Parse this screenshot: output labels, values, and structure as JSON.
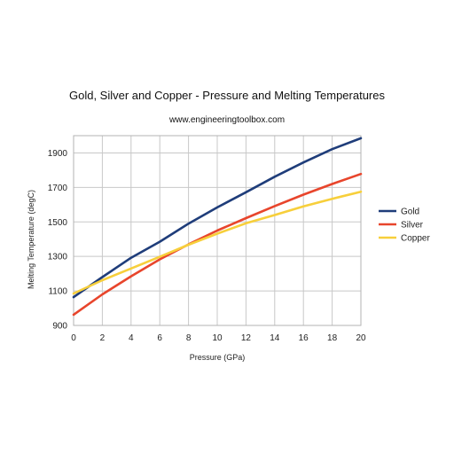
{
  "chart_data": {
    "type": "line",
    "title": "Gold, Silver and Copper - Pressure and Melting Temperatures",
    "subtitle": "www.engineeringtoolbox.com",
    "xlabel": "Pressure (GPa)",
    "ylabel": "Melting Temperature (degC)",
    "xlim": [
      0,
      20
    ],
    "ylim": [
      900,
      2000
    ],
    "x_ticks": [
      0,
      2,
      4,
      6,
      8,
      10,
      12,
      14,
      16,
      18,
      20
    ],
    "y_ticks": [
      900,
      1100,
      1300,
      1500,
      1700,
      1900
    ],
    "grid": true,
    "legend_position": "right",
    "x": [
      0,
      2,
      4,
      6,
      8,
      10,
      12,
      14,
      16,
      18,
      20
    ],
    "series": [
      {
        "name": "Gold",
        "color": "#1f3d7a",
        "values": [
          1064,
          1180,
          1292,
          1385,
          1490,
          1584,
          1672,
          1762,
          1845,
          1922,
          1985
        ]
      },
      {
        "name": "Silver",
        "color": "#e8452c",
        "values": [
          962,
          1080,
          1185,
          1283,
          1370,
          1450,
          1522,
          1592,
          1658,
          1720,
          1778
        ]
      },
      {
        "name": "Copper",
        "color": "#f7cf3b",
        "values": [
          1085,
          1162,
          1230,
          1298,
          1368,
          1432,
          1492,
          1540,
          1590,
          1634,
          1675
        ]
      }
    ]
  }
}
